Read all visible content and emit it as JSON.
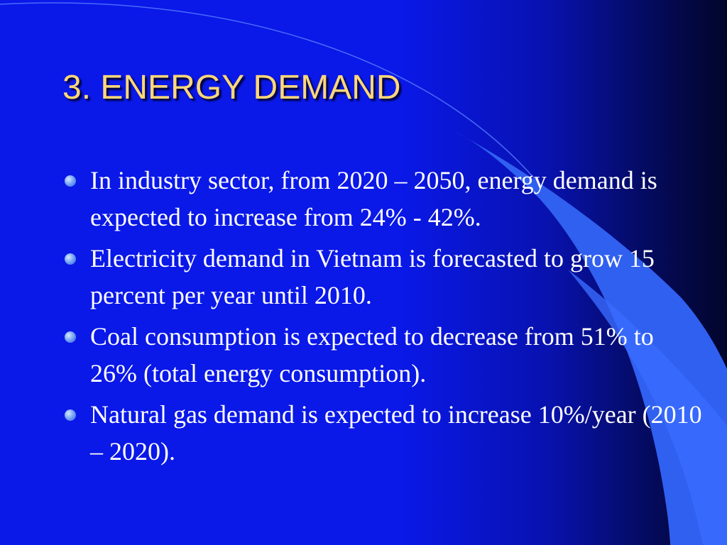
{
  "slide": {
    "title": "3. ENERGY DEMAND",
    "bullets": [
      {
        "text": "In industry sector, from 2020 – 2050, energy demand is expected to increase from 24% - 42%."
      },
      {
        "text": "Electricity demand in Vietnam is forecasted to grow 15 percent per year until 2010."
      },
      {
        "text": "Coal consumption is expected to decrease from 51% to 26% (total energy consumption)."
      },
      {
        "text": "Natural gas demand is expected to increase 10%/year (2010 – 2020)."
      }
    ]
  },
  "colors": {
    "background": "#0a18e8",
    "background_dark": "#02052a",
    "title": "#ffd878",
    "body_text": "#ffffff",
    "accent_panel": "#3060f0",
    "bullet": "#7aa8f8"
  },
  "icons": {
    "bullet": "bullet-dot-icon"
  }
}
